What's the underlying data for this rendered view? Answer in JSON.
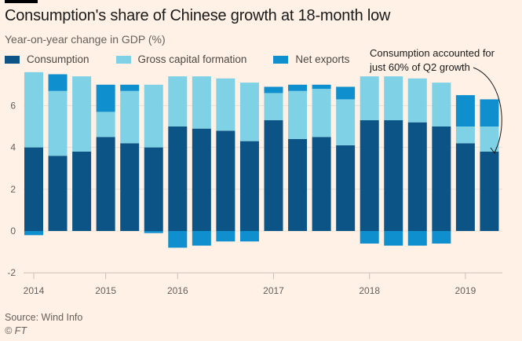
{
  "chart_data": {
    "type": "bar",
    "stacked": true,
    "title": "Consumption's share of Chinese growth at 18-month low",
    "subtitle": "Year-on-year change in GDP (%)",
    "x_tick_labels": [
      "2014",
      "2015",
      "2016",
      "2017",
      "2018",
      "2019"
    ],
    "y_tick_labels": [
      "-2",
      "0",
      "2",
      "4",
      "6"
    ],
    "ylim": [
      -2,
      7.6
    ],
    "grid": true,
    "legend_position": "top-left",
    "series": [
      {
        "name": "Consumption",
        "color": "#0d5486",
        "values": [
          4.0,
          3.6,
          3.8,
          4.5,
          4.2,
          4.0,
          5.0,
          4.9,
          4.8,
          4.3,
          5.3,
          4.4,
          4.5,
          4.1,
          5.3,
          5.3,
          5.2,
          5.0,
          4.2,
          3.8
        ]
      },
      {
        "name": "Gross capital formation",
        "color": "#7fd1e6",
        "values": [
          3.6,
          3.1,
          3.6,
          1.2,
          2.5,
          3.0,
          2.4,
          2.5,
          2.5,
          2.8,
          1.3,
          2.3,
          2.3,
          2.2,
          2.1,
          2.1,
          2.1,
          2.1,
          0.8,
          1.2
        ]
      },
      {
        "name": "Net exports",
        "color": "#0f8fce",
        "values": [
          -0.2,
          0.8,
          0.0,
          1.3,
          0.3,
          -0.1,
          -0.8,
          -0.7,
          -0.5,
          -0.5,
          0.3,
          0.3,
          0.2,
          0.6,
          -0.6,
          -0.7,
          -0.7,
          -0.6,
          1.5,
          1.3
        ]
      }
    ],
    "annotation": {
      "line1": "Consumption accounted for",
      "line2": "just 60% of Q2 growth"
    }
  },
  "source": "Source: Wind Info",
  "copyright": "© FT"
}
